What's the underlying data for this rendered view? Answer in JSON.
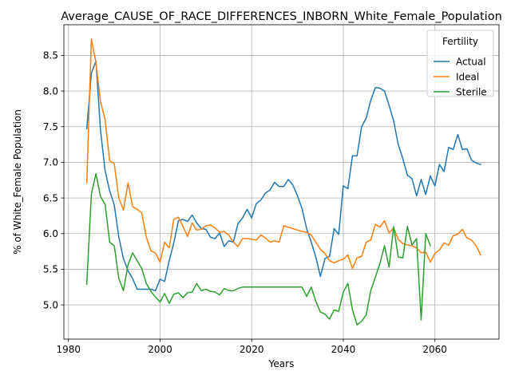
{
  "chart_data": {
    "type": "line",
    "title": "Average_CAUSE_OF_RACE_DIFFERENCES_INBORN_White_Female_Population",
    "xlabel": "Years",
    "ylabel": "% of White_Female Population",
    "xlim": [
      1979,
      2074
    ],
    "ylim": [
      4.52,
      8.93
    ],
    "xticks": [
      1980,
      2000,
      2020,
      2040,
      2060
    ],
    "yticks": [
      5.0,
      5.5,
      6.0,
      6.5,
      7.0,
      7.5,
      8.0,
      8.5
    ],
    "grid": true,
    "legend": {
      "title": "Fertility",
      "position": "top-right"
    },
    "series": [
      {
        "name": "Actual",
        "color": "#1f77b4",
        "points": [
          [
            1984,
            7.47
          ],
          [
            1985,
            8.25
          ],
          [
            1986,
            8.42
          ],
          [
            1987,
            7.45
          ],
          [
            1988,
            6.88
          ],
          [
            1989,
            6.6
          ],
          [
            1990,
            6.4
          ],
          [
            1991,
            5.95
          ],
          [
            1992,
            5.65
          ],
          [
            1993,
            5.48
          ],
          [
            1994,
            5.37
          ],
          [
            1995,
            5.22
          ],
          [
            1996,
            5.22
          ],
          [
            1997,
            5.22
          ],
          [
            1998,
            5.22
          ],
          [
            1999,
            5.2
          ],
          [
            2000,
            5.36
          ],
          [
            2001,
            5.33
          ],
          [
            2002,
            5.62
          ],
          [
            2003,
            5.87
          ],
          [
            2004,
            6.18
          ],
          [
            2005,
            6.2
          ],
          [
            2006,
            6.17
          ],
          [
            2007,
            6.26
          ],
          [
            2008,
            6.15
          ],
          [
            2009,
            6.07
          ],
          [
            2010,
            6.06
          ],
          [
            2011,
            5.95
          ],
          [
            2012,
            5.93
          ],
          [
            2013,
            6.01
          ],
          [
            2014,
            5.82
          ],
          [
            2015,
            5.9
          ],
          [
            2016,
            5.88
          ],
          [
            2017,
            6.14
          ],
          [
            2018,
            6.22
          ],
          [
            2019,
            6.34
          ],
          [
            2020,
            6.22
          ],
          [
            2021,
            6.42
          ],
          [
            2022,
            6.47
          ],
          [
            2023,
            6.57
          ],
          [
            2024,
            6.61
          ],
          [
            2025,
            6.72
          ],
          [
            2026,
            6.66
          ],
          [
            2027,
            6.66
          ],
          [
            2028,
            6.76
          ],
          [
            2029,
            6.68
          ],
          [
            2030,
            6.53
          ],
          [
            2031,
            6.35
          ],
          [
            2032,
            6.07
          ],
          [
            2033,
            5.88
          ],
          [
            2034,
            5.67
          ],
          [
            2035,
            5.4
          ],
          [
            2036,
            5.65
          ],
          [
            2037,
            5.68
          ],
          [
            2038,
            6.07
          ],
          [
            2039,
            5.99
          ],
          [
            2040,
            6.67
          ],
          [
            2041,
            6.63
          ],
          [
            2042,
            7.09
          ],
          [
            2043,
            7.09
          ],
          [
            2044,
            7.5
          ],
          [
            2045,
            7.62
          ],
          [
            2046,
            7.87
          ],
          [
            2047,
            8.05
          ],
          [
            2048,
            8.04
          ],
          [
            2049,
            8.0
          ],
          [
            2050,
            7.8
          ],
          [
            2051,
            7.58
          ],
          [
            2052,
            7.25
          ],
          [
            2053,
            7.05
          ],
          [
            2054,
            6.82
          ],
          [
            2055,
            6.77
          ],
          [
            2056,
            6.53
          ],
          [
            2057,
            6.76
          ],
          [
            2058,
            6.55
          ],
          [
            2059,
            6.81
          ],
          [
            2060,
            6.67
          ],
          [
            2061,
            6.97
          ],
          [
            2062,
            6.87
          ],
          [
            2063,
            7.21
          ],
          [
            2064,
            7.18
          ],
          [
            2065,
            7.39
          ],
          [
            2066,
            7.18
          ],
          [
            2067,
            7.19
          ],
          [
            2068,
            7.03
          ],
          [
            2069,
            6.99
          ],
          [
            2070,
            6.97
          ]
        ]
      },
      {
        "name": "Ideal",
        "color": "#ff7f0e",
        "points": [
          [
            1984,
            6.71
          ],
          [
            1985,
            8.73
          ],
          [
            1986,
            8.4
          ],
          [
            1987,
            7.85
          ],
          [
            1988,
            7.6
          ],
          [
            1989,
            7.02
          ],
          [
            1990,
            6.98
          ],
          [
            1991,
            6.5
          ],
          [
            1992,
            6.33
          ],
          [
            1993,
            6.71
          ],
          [
            1994,
            6.38
          ],
          [
            1995,
            6.34
          ],
          [
            1996,
            6.29
          ],
          [
            1997,
            5.95
          ],
          [
            1998,
            5.76
          ],
          [
            1999,
            5.73
          ],
          [
            2000,
            5.6
          ],
          [
            2001,
            5.88
          ],
          [
            2002,
            5.8
          ],
          [
            2003,
            6.2
          ],
          [
            2004,
            6.23
          ],
          [
            2005,
            6.1
          ],
          [
            2006,
            5.96
          ],
          [
            2007,
            6.15
          ],
          [
            2008,
            6.05
          ],
          [
            2009,
            6.06
          ],
          [
            2010,
            6.11
          ],
          [
            2011,
            6.12
          ],
          [
            2012,
            6.08
          ],
          [
            2013,
            6.02
          ],
          [
            2014,
            6.03
          ],
          [
            2015,
            5.98
          ],
          [
            2016,
            5.88
          ],
          [
            2017,
            5.82
          ],
          [
            2018,
            5.93
          ],
          [
            2019,
            5.93
          ],
          [
            2020,
            5.92
          ],
          [
            2021,
            5.91
          ],
          [
            2022,
            5.98
          ],
          [
            2023,
            5.94
          ],
          [
            2024,
            5.88
          ],
          [
            2025,
            5.9
          ],
          [
            2026,
            5.88
          ],
          [
            2027,
            6.11
          ],
          [
            2028,
            6.09
          ],
          [
            2029,
            6.07
          ],
          [
            2030,
            6.05
          ],
          [
            2031,
            6.03
          ],
          [
            2032,
            6.02
          ],
          [
            2033,
            5.98
          ],
          [
            2034,
            5.88
          ],
          [
            2035,
            5.78
          ],
          [
            2036,
            5.72
          ],
          [
            2037,
            5.62
          ],
          [
            2038,
            5.59
          ],
          [
            2039,
            5.62
          ],
          [
            2040,
            5.64
          ],
          [
            2041,
            5.7
          ],
          [
            2042,
            5.51
          ],
          [
            2043,
            5.66
          ],
          [
            2044,
            5.68
          ],
          [
            2045,
            5.88
          ],
          [
            2046,
            5.91
          ],
          [
            2047,
            6.13
          ],
          [
            2048,
            6.09
          ],
          [
            2049,
            6.18
          ],
          [
            2050,
            6.01
          ],
          [
            2051,
            6.08
          ],
          [
            2052,
            5.92
          ],
          [
            2053,
            5.86
          ],
          [
            2054,
            5.84
          ],
          [
            2055,
            5.83
          ],
          [
            2056,
            5.8
          ],
          [
            2057,
            5.73
          ],
          [
            2058,
            5.74
          ],
          [
            2059,
            5.6
          ],
          [
            2060,
            5.72
          ],
          [
            2061,
            5.77
          ],
          [
            2062,
            5.87
          ],
          [
            2063,
            5.84
          ],
          [
            2064,
            5.97
          ],
          [
            2065,
            5.99
          ],
          [
            2066,
            6.06
          ],
          [
            2067,
            5.94
          ],
          [
            2068,
            5.91
          ],
          [
            2069,
            5.83
          ],
          [
            2070,
            5.7
          ]
        ]
      },
      {
        "name": "Sterile",
        "color": "#2ca02c",
        "points": [
          [
            1984,
            5.29
          ],
          [
            1985,
            6.55
          ],
          [
            1986,
            6.84
          ],
          [
            1987,
            6.52
          ],
          [
            1988,
            6.41
          ],
          [
            1989,
            5.88
          ],
          [
            1990,
            5.83
          ],
          [
            1991,
            5.37
          ],
          [
            1992,
            5.2
          ],
          [
            1993,
            5.56
          ],
          [
            1994,
            5.73
          ],
          [
            1995,
            5.62
          ],
          [
            1996,
            5.51
          ],
          [
            1997,
            5.3
          ],
          [
            1998,
            5.19
          ],
          [
            1999,
            5.11
          ],
          [
            2000,
            5.04
          ],
          [
            2001,
            5.16
          ],
          [
            2002,
            5.02
          ],
          [
            2003,
            5.15
          ],
          [
            2004,
            5.17
          ],
          [
            2005,
            5.1
          ],
          [
            2006,
            5.17
          ],
          [
            2007,
            5.18
          ],
          [
            2008,
            5.3
          ],
          [
            2009,
            5.2
          ],
          [
            2010,
            5.22
          ],
          [
            2011,
            5.19
          ],
          [
            2012,
            5.18
          ],
          [
            2013,
            5.14
          ],
          [
            2014,
            5.23
          ],
          [
            2015,
            5.2
          ],
          [
            2016,
            5.2
          ],
          [
            2017,
            5.23
          ],
          [
            2018,
            5.25
          ],
          [
            2019,
            5.25
          ],
          [
            2020,
            5.25
          ],
          [
            2021,
            5.25
          ],
          [
            2022,
            5.25
          ],
          [
            2023,
            5.25
          ],
          [
            2024,
            5.25
          ],
          [
            2025,
            5.25
          ],
          [
            2026,
            5.25
          ],
          [
            2027,
            5.25
          ],
          [
            2028,
            5.25
          ],
          [
            2029,
            5.25
          ],
          [
            2030,
            5.25
          ],
          [
            2031,
            5.25
          ],
          [
            2032,
            5.12
          ],
          [
            2033,
            5.25
          ],
          [
            2034,
            5.05
          ],
          [
            2035,
            4.9
          ],
          [
            2036,
            4.87
          ],
          [
            2037,
            4.8
          ],
          [
            2038,
            4.93
          ],
          [
            2039,
            4.91
          ],
          [
            2040,
            5.18
          ],
          [
            2041,
            5.3
          ],
          [
            2042,
            4.93
          ],
          [
            2043,
            4.72
          ],
          [
            2044,
            4.77
          ],
          [
            2045,
            4.86
          ],
          [
            2046,
            5.2
          ],
          [
            2047,
            5.39
          ],
          [
            2048,
            5.58
          ],
          [
            2049,
            5.83
          ],
          [
            2050,
            5.53
          ],
          [
            2051,
            6.1
          ],
          [
            2052,
            5.67
          ],
          [
            2053,
            5.66
          ],
          [
            2054,
            6.1
          ],
          [
            2055,
            5.84
          ],
          [
            2056,
            5.93
          ],
          [
            2057,
            4.79
          ],
          [
            2058,
            6.0
          ],
          [
            2059,
            5.83
          ]
        ]
      }
    ]
  }
}
